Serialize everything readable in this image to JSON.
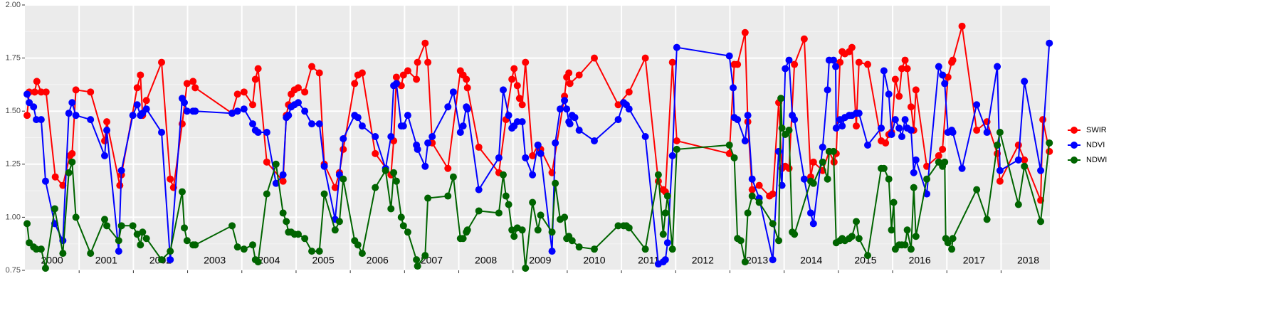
{
  "chart_data": {
    "type": "line",
    "xlim": [
      2000,
      2018.9
    ],
    "xticks": [
      {
        "value": 2000.5,
        "label": "2000"
      },
      {
        "value": 2001.5,
        "label": "2001"
      },
      {
        "value": 2002.5,
        "label": "2002"
      },
      {
        "value": 2003.5,
        "label": "2003"
      },
      {
        "value": 2004.5,
        "label": "2004"
      },
      {
        "value": 2005.5,
        "label": "2005"
      },
      {
        "value": 2006.5,
        "label": "2006"
      },
      {
        "value": 2007.5,
        "label": "2007"
      },
      {
        "value": 2008.5,
        "label": "2008"
      },
      {
        "value": 2009.5,
        "label": "2009"
      },
      {
        "value": 2010.5,
        "label": "2010"
      },
      {
        "value": 2011.5,
        "label": "2011"
      },
      {
        "value": 2012.5,
        "label": "2012"
      },
      {
        "value": 2013.5,
        "label": "2013"
      },
      {
        "value": 2014.5,
        "label": "2014"
      },
      {
        "value": 2015.5,
        "label": "2015"
      },
      {
        "value": 2016.5,
        "label": "2016"
      },
      {
        "value": 2017.5,
        "label": "2017"
      },
      {
        "value": 2018.5,
        "label": "2018"
      }
    ],
    "xgrid": [
      2001,
      2002,
      2003,
      2004,
      2005,
      2006,
      2007,
      2008,
      2009,
      2010,
      2011,
      2012,
      2013,
      2014,
      2015,
      2016,
      2017,
      2018
    ],
    "ylim": [
      0.75,
      2.0
    ],
    "yticks": [
      {
        "value": 0.75,
        "label": "0.75"
      },
      {
        "value": 1.0,
        "label": "1.00"
      },
      {
        "value": 1.25,
        "label": "1.25"
      },
      {
        "value": 1.5,
        "label": "1.50"
      },
      {
        "value": 1.75,
        "label": "1.75"
      },
      {
        "value": 2.0,
        "label": "2.00"
      }
    ],
    "grid": true,
    "legend": "right",
    "series": [
      {
        "name": "SWIR",
        "color": "#ff0000",
        "x": [
          2000.04,
          2000.08,
          2000.18,
          2000.22,
          2000.3,
          2000.39,
          2000.56,
          2000.7,
          2000.83,
          2000.87,
          2000.94,
          2001.21,
          2001.47,
          2001.51,
          2001.75,
          2001.78,
          2002.07,
          2002.13,
          2002.17,
          2002.24,
          2002.52,
          2002.68,
          2002.74,
          2002.9,
          2002.99,
          2003.1,
          2003.14,
          2003.82,
          2003.92,
          2004.04,
          2004.2,
          2004.25,
          2004.3,
          2004.46,
          2004.76,
          2004.82,
          2004.86,
          2004.91,
          2004.97,
          2005.04,
          2005.16,
          2005.29,
          2005.43,
          2005.52,
          2005.72,
          2005.8,
          2005.87,
          2006.08,
          2006.14,
          2006.22,
          2006.46,
          2006.75,
          2006.8,
          2006.85,
          2006.94,
          2006.98,
          2007.06,
          2007.22,
          2007.24,
          2007.38,
          2007.43,
          2007.51,
          2007.8,
          2008.03,
          2008.08,
          2008.14,
          2008.16,
          2008.37,
          2008.74,
          2008.87,
          2008.98,
          2009.02,
          2009.08,
          2009.12,
          2009.17,
          2009.23,
          2009.36,
          2009.46,
          2009.51,
          2009.72,
          2009.95,
          2009.99,
          2010.03,
          2010.05,
          2010.22,
          2010.5,
          2010.94,
          2011.14,
          2011.44,
          2011.68,
          2011.77,
          2011.81,
          2011.94,
          2012.02,
          2012.99,
          2013.08,
          2013.14,
          2013.28,
          2013.33,
          2013.41,
          2013.54,
          2013.73,
          2013.79,
          2013.9,
          2013.96,
          2014.02,
          2014.09,
          2014.19,
          2014.37,
          2014.49,
          2014.54,
          2014.71,
          2014.83,
          2014.92,
          2014.96,
          2015.03,
          2015.07,
          2015.12,
          2015.2,
          2015.25,
          2015.33,
          2015.38,
          2015.54,
          2015.79,
          2015.87,
          2015.93,
          2015.98,
          2016.05,
          2016.12,
          2016.17,
          2016.23,
          2016.27,
          2016.34,
          2016.39,
          2016.43,
          2016.63,
          2016.85,
          2016.92,
          2017.02,
          2017.09,
          2017.11,
          2017.28,
          2017.55,
          2017.74,
          2017.93,
          2017.98,
          2018.32,
          2018.43,
          2018.73,
          2018.77,
          2018.89
        ],
        "values": [
          1.48,
          1.59,
          1.59,
          1.64,
          1.59,
          1.59,
          1.19,
          1.15,
          1.29,
          1.3,
          1.6,
          1.59,
          1.36,
          1.45,
          1.15,
          1.2,
          1.61,
          1.67,
          1.48,
          1.55,
          1.73,
          1.18,
          1.14,
          1.44,
          1.63,
          1.64,
          1.61,
          1.49,
          1.58,
          1.59,
          1.53,
          1.65,
          1.7,
          1.26,
          1.17,
          1.48,
          1.53,
          1.58,
          1.6,
          1.61,
          1.59,
          1.71,
          1.68,
          1.25,
          1.14,
          1.21,
          1.32,
          1.63,
          1.67,
          1.68,
          1.3,
          1.2,
          1.36,
          1.66,
          1.62,
          1.67,
          1.69,
          1.65,
          1.73,
          1.82,
          1.73,
          1.35,
          1.23,
          1.69,
          1.67,
          1.65,
          1.61,
          1.33,
          1.21,
          1.46,
          1.65,
          1.7,
          1.62,
          1.56,
          1.53,
          1.73,
          1.29,
          1.34,
          1.32,
          1.21,
          1.57,
          1.66,
          1.68,
          1.63,
          1.67,
          1.75,
          1.53,
          1.59,
          1.75,
          1.17,
          1.13,
          1.12,
          1.73,
          1.36,
          1.3,
          1.72,
          1.72,
          1.87,
          1.45,
          1.13,
          1.15,
          1.1,
          1.11,
          1.54,
          1.23,
          1.24,
          1.23,
          1.72,
          1.84,
          1.19,
          1.26,
          1.22,
          1.31,
          1.26,
          1.3,
          1.73,
          1.78,
          1.77,
          1.78,
          1.8,
          1.43,
          1.73,
          1.72,
          1.36,
          1.35,
          1.39,
          1.4,
          1.65,
          1.57,
          1.7,
          1.74,
          1.7,
          1.52,
          1.41,
          1.6,
          1.24,
          1.29,
          1.32,
          1.66,
          1.73,
          1.74,
          1.9,
          1.41,
          1.45,
          1.3,
          1.17,
          1.34,
          1.27,
          1.08,
          1.46,
          1.31
        ]
      },
      {
        "name": "NDVI",
        "color": "#0000ff",
        "x": [
          2000.04,
          2000.08,
          2000.16,
          2000.21,
          2000.3,
          2000.38,
          2000.55,
          2000.7,
          2000.81,
          2000.87,
          2000.94,
          2001.21,
          2001.47,
          2001.51,
          2001.73,
          2001.78,
          2001.99,
          2002.07,
          2002.13,
          2002.17,
          2002.24,
          2002.52,
          2002.68,
          2002.9,
          2002.94,
          2002.99,
          2003.1,
          2003.14,
          2003.82,
          2003.92,
          2004.04,
          2004.2,
          2004.25,
          2004.3,
          2004.46,
          2004.63,
          2004.76,
          2004.82,
          2004.86,
          2004.91,
          2004.97,
          2005.04,
          2005.16,
          2005.29,
          2005.43,
          2005.52,
          2005.72,
          2005.8,
          2005.87,
          2006.08,
          2006.14,
          2006.22,
          2006.46,
          2006.65,
          2006.75,
          2006.8,
          2006.85,
          2006.94,
          2006.98,
          2007.06,
          2007.22,
          2007.24,
          2007.38,
          2007.43,
          2007.51,
          2007.8,
          2007.9,
          2008.03,
          2008.08,
          2008.14,
          2008.16,
          2008.37,
          2008.74,
          2008.82,
          2008.92,
          2008.98,
          2009.02,
          2009.08,
          2009.17,
          2009.23,
          2009.36,
          2009.46,
          2009.51,
          2009.72,
          2009.78,
          2009.87,
          2009.95,
          2009.99,
          2010.03,
          2010.05,
          2010.09,
          2010.14,
          2010.22,
          2010.5,
          2010.94,
          2011.04,
          2011.09,
          2011.14,
          2011.44,
          2011.68,
          2011.77,
          2011.81,
          2011.85,
          2011.94,
          2012.02,
          2012.99,
          2013.06,
          2013.08,
          2013.14,
          2013.28,
          2013.33,
          2013.41,
          2013.54,
          2013.79,
          2013.9,
          2013.96,
          2014.02,
          2014.09,
          2014.15,
          2014.19,
          2014.37,
          2014.49,
          2014.54,
          2014.71,
          2014.8,
          2014.83,
          2014.91,
          2014.95,
          2014.96,
          2015.03,
          2015.07,
          2015.12,
          2015.2,
          2015.25,
          2015.33,
          2015.38,
          2015.54,
          2015.79,
          2015.84,
          2015.93,
          2015.98,
          2016.05,
          2016.12,
          2016.17,
          2016.23,
          2016.27,
          2016.34,
          2016.39,
          2016.43,
          2016.63,
          2016.85,
          2016.92,
          2016.96,
          2017.02,
          2017.09,
          2017.11,
          2017.28,
          2017.55,
          2017.74,
          2017.93,
          2017.98,
          2018.32,
          2018.43,
          2018.73,
          2018.89
        ],
        "values": [
          1.58,
          1.54,
          1.52,
          1.46,
          1.46,
          1.17,
          0.97,
          0.89,
          1.49,
          1.54,
          1.48,
          1.46,
          1.29,
          1.41,
          0.84,
          1.22,
          1.48,
          1.53,
          1.48,
          1.49,
          1.51,
          1.4,
          0.8,
          1.56,
          1.54,
          1.5,
          1.5,
          1.5,
          1.49,
          1.5,
          1.51,
          1.44,
          1.41,
          1.4,
          1.4,
          1.16,
          1.2,
          1.47,
          1.48,
          1.52,
          1.53,
          1.54,
          1.5,
          1.44,
          1.44,
          1.24,
          0.99,
          1.2,
          1.37,
          1.48,
          1.47,
          1.43,
          1.38,
          1.23,
          1.38,
          1.62,
          1.63,
          1.43,
          1.43,
          1.48,
          1.34,
          1.32,
          1.24,
          1.35,
          1.38,
          1.52,
          1.59,
          1.4,
          1.43,
          1.52,
          1.51,
          1.13,
          1.28,
          1.6,
          1.48,
          1.42,
          1.43,
          1.45,
          1.45,
          1.28,
          1.2,
          1.34,
          1.3,
          0.84,
          1.35,
          1.51,
          1.55,
          1.51,
          1.45,
          1.44,
          1.48,
          1.47,
          1.41,
          1.36,
          1.46,
          1.54,
          1.53,
          1.51,
          1.38,
          0.78,
          0.79,
          0.8,
          0.88,
          1.29,
          1.8,
          1.76,
          1.61,
          1.47,
          1.46,
          1.36,
          1.48,
          1.18,
          1.09,
          0.8,
          1.31,
          1.15,
          1.7,
          1.74,
          1.48,
          1.46,
          1.18,
          1.02,
          0.97,
          1.33,
          1.6,
          1.74,
          1.74,
          1.71,
          1.42,
          1.46,
          1.43,
          1.47,
          1.48,
          1.48,
          1.49,
          1.49,
          1.34,
          1.42,
          1.69,
          1.58,
          1.39,
          1.46,
          1.42,
          1.38,
          1.46,
          1.42,
          1.41,
          1.21,
          1.27,
          1.11,
          1.71,
          1.67,
          1.63,
          1.4,
          1.41,
          1.4,
          1.23,
          1.53,
          1.4,
          1.71,
          1.22,
          1.27,
          1.64,
          1.22,
          1.82
        ]
      },
      {
        "name": "NDWI",
        "color": "#006400",
        "x": [
          2000.04,
          2000.08,
          2000.16,
          2000.21,
          2000.3,
          2000.38,
          2000.55,
          2000.7,
          2000.81,
          2000.87,
          2000.94,
          2001.21,
          2001.47,
          2001.51,
          2001.73,
          2001.78,
          2001.99,
          2002.07,
          2002.13,
          2002.17,
          2002.24,
          2002.52,
          2002.68,
          2002.9,
          2002.94,
          2002.99,
          2003.1,
          2003.14,
          2003.82,
          2003.92,
          2004.04,
          2004.2,
          2004.25,
          2004.3,
          2004.46,
          2004.63,
          2004.76,
          2004.82,
          2004.86,
          2004.91,
          2004.97,
          2005.04,
          2005.16,
          2005.29,
          2005.43,
          2005.52,
          2005.72,
          2005.8,
          2005.87,
          2006.08,
          2006.14,
          2006.22,
          2006.46,
          2006.65,
          2006.75,
          2006.8,
          2006.85,
          2006.94,
          2006.98,
          2007.06,
          2007.22,
          2007.24,
          2007.38,
          2007.43,
          2007.8,
          2007.9,
          2008.03,
          2008.08,
          2008.14,
          2008.16,
          2008.37,
          2008.74,
          2008.82,
          2008.87,
          2008.92,
          2008.98,
          2009.02,
          2009.08,
          2009.17,
          2009.23,
          2009.36,
          2009.46,
          2009.51,
          2009.72,
          2009.78,
          2009.87,
          2009.95,
          2009.99,
          2010.03,
          2010.09,
          2010.22,
          2010.5,
          2010.94,
          2011.04,
          2011.09,
          2011.14,
          2011.44,
          2011.68,
          2011.77,
          2011.81,
          2011.85,
          2011.94,
          2012.02,
          2012.99,
          2013.08,
          2013.14,
          2013.2,
          2013.28,
          2013.33,
          2013.41,
          2013.54,
          2013.79,
          2013.9,
          2013.94,
          2013.96,
          2014.02,
          2014.09,
          2014.15,
          2014.19,
          2014.49,
          2014.54,
          2014.71,
          2014.8,
          2014.83,
          2014.91,
          2014.96,
          2015.03,
          2015.07,
          2015.12,
          2015.2,
          2015.25,
          2015.33,
          2015.38,
          2015.54,
          2015.79,
          2015.84,
          2015.93,
          2015.98,
          2016.02,
          2016.05,
          2016.12,
          2016.17,
          2016.23,
          2016.27,
          2016.34,
          2016.39,
          2016.43,
          2016.63,
          2016.85,
          2016.92,
          2016.96,
          2016.98,
          2017.02,
          2017.09,
          2017.11,
          2017.55,
          2017.74,
          2017.93,
          2017.98,
          2018.32,
          2018.43,
          2018.73,
          2018.89
        ],
        "values": [
          0.97,
          0.88,
          0.86,
          0.85,
          0.85,
          0.76,
          1.04,
          0.83,
          1.21,
          1.26,
          1.0,
          0.83,
          0.99,
          0.96,
          0.89,
          0.96,
          0.96,
          0.92,
          0.87,
          0.93,
          0.9,
          0.8,
          0.84,
          1.12,
          0.95,
          0.89,
          0.87,
          0.87,
          0.96,
          0.86,
          0.85,
          0.87,
          0.8,
          0.79,
          1.11,
          1.25,
          1.02,
          0.98,
          0.93,
          0.93,
          0.92,
          0.92,
          0.9,
          0.84,
          0.84,
          1.11,
          0.94,
          0.98,
          1.18,
          0.89,
          0.87,
          0.83,
          1.14,
          1.22,
          1.04,
          1.21,
          1.17,
          1.0,
          0.96,
          0.93,
          0.8,
          0.77,
          0.82,
          1.09,
          1.1,
          1.19,
          0.9,
          0.9,
          0.93,
          0.94,
          1.03,
          1.02,
          1.2,
          1.1,
          1.06,
          0.94,
          0.91,
          0.95,
          0.94,
          0.76,
          1.07,
          0.94,
          1.01,
          0.93,
          1.16,
          0.99,
          1.0,
          0.9,
          0.91,
          0.89,
          0.86,
          0.85,
          0.96,
          0.96,
          0.96,
          0.95,
          0.85,
          1.2,
          0.92,
          1.02,
          1.1,
          0.85,
          1.32,
          1.34,
          1.28,
          0.9,
          0.89,
          0.79,
          1.02,
          1.1,
          1.07,
          0.97,
          0.89,
          1.56,
          1.42,
          1.39,
          1.41,
          0.93,
          0.92,
          1.17,
          1.16,
          1.26,
          1.18,
          1.31,
          1.31,
          0.88,
          0.89,
          0.9,
          0.89,
          0.9,
          0.91,
          0.98,
          0.9,
          0.82,
          1.23,
          1.23,
          1.18,
          0.94,
          1.07,
          0.85,
          0.87,
          0.87,
          0.87,
          0.94,
          0.85,
          1.14,
          0.91,
          1.18,
          1.26,
          1.24,
          1.26,
          0.9,
          0.88,
          0.85,
          0.9,
          1.13,
          0.99,
          1.34,
          1.4,
          1.06,
          1.24,
          0.98,
          1.35
        ]
      }
    ]
  }
}
